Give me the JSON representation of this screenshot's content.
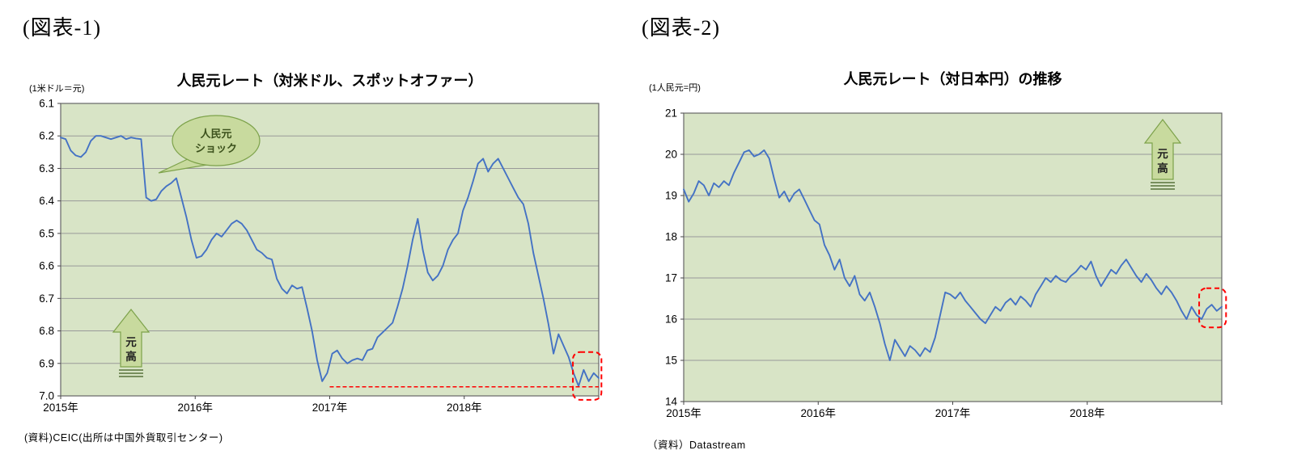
{
  "figures": {
    "fig1_label": "(図表-1)",
    "fig2_label": "(図表-2)"
  },
  "colors": {
    "line_blue": "#4472c4",
    "plot_green": "#d8e4c6",
    "annotation_green": "#c8da9e",
    "highlight_red": "#ff0000"
  },
  "chart_data": [
    {
      "type": "line",
      "title": "人民元レート（対米ドル、スポットオファー）",
      "unit_label": "(1米ドル＝元)",
      "source": "(資料)CEIC(出所は中国外貨取引センター)",
      "x_labels": [
        "2015年",
        "2016年",
        "2017年",
        "2018年"
      ],
      "x_label_positions": [
        0,
        0.25,
        0.5,
        0.75
      ],
      "x_tick_positions": [
        0,
        0.25,
        0.5,
        0.75,
        1
      ],
      "y_ticks": [
        "6.1",
        "6.2",
        "6.3",
        "6.4",
        "6.5",
        "6.6",
        "6.7",
        "6.8",
        "6.9",
        "7.0"
      ],
      "y_min": 6.1,
      "y_max": 7.0,
      "y_inverted": true,
      "grid": true,
      "line_color": "#4472c4",
      "plot_bg": "#d8e4c6",
      "grid_color": "#999999",
      "frame_color": "#666666",
      "series": [
        {
          "name": "人民元レート(対米ドル)",
          "values": [
            6.205,
            6.21,
            6.245,
            6.26,
            6.265,
            6.25,
            6.215,
            6.2,
            6.2,
            6.205,
            6.21,
            6.205,
            6.2,
            6.21,
            6.205,
            6.208,
            6.21,
            6.39,
            6.4,
            6.395,
            6.37,
            6.355,
            6.345,
            6.33,
            6.39,
            6.45,
            6.52,
            6.575,
            6.57,
            6.55,
            6.52,
            6.5,
            6.51,
            6.49,
            6.47,
            6.46,
            6.47,
            6.49,
            6.52,
            6.55,
            6.56,
            6.575,
            6.58,
            6.64,
            6.67,
            6.685,
            6.66,
            6.67,
            6.665,
            6.73,
            6.8,
            6.89,
            6.955,
            6.93,
            6.87,
            6.86,
            6.885,
            6.9,
            6.89,
            6.885,
            6.89,
            6.86,
            6.855,
            6.82,
            6.805,
            6.79,
            6.775,
            6.725,
            6.67,
            6.6,
            6.52,
            6.455,
            6.55,
            6.62,
            6.645,
            6.63,
            6.6,
            6.55,
            6.52,
            6.5,
            6.43,
            6.39,
            6.34,
            6.285,
            6.27,
            6.31,
            6.285,
            6.27,
            6.3,
            6.33,
            6.36,
            6.39,
            6.41,
            6.47,
            6.56,
            6.63,
            6.7,
            6.78,
            6.87,
            6.81,
            6.845,
            6.88,
            6.93,
            6.97,
            6.92,
            6.955,
            6.93,
            6.945
          ]
        }
      ],
      "ref_line": {
        "value": 6.972,
        "x_start": 0.5,
        "x_end": 1.0,
        "color": "#ff0000"
      },
      "highlight_box": {
        "x_start": 0.952,
        "x_end": 1.005,
        "y_top": 6.865,
        "y_bottom": 7.012,
        "color": "#ff0000"
      },
      "annotations": {
        "callout_line1": "人民元",
        "callout_line2": "ショック",
        "arrow_char1": "元",
        "arrow_char2": "高"
      }
    },
    {
      "type": "line",
      "title": "人民元レート（対日本円）の推移",
      "unit_label": "(1人民元=円)",
      "source": "（資料）Datastream",
      "x_labels": [
        "2015年",
        "2016年",
        "2017年",
        "2018年"
      ],
      "x_label_positions": [
        0,
        0.25,
        0.5,
        0.75
      ],
      "x_tick_positions": [
        0,
        0.25,
        0.5,
        0.75,
        1
      ],
      "y_ticks": [
        "21",
        "20",
        "19",
        "18",
        "17",
        "16",
        "15",
        "14"
      ],
      "y_min": 14,
      "y_max": 21,
      "y_inverted": false,
      "grid": true,
      "line_color": "#4472c4",
      "plot_bg": "#d8e4c6",
      "grid_color": "#999999",
      "frame_color": "#666666",
      "series": [
        {
          "name": "人民元レート(対日本円)",
          "values": [
            19.15,
            18.85,
            19.05,
            19.35,
            19.25,
            19.0,
            19.3,
            19.2,
            19.35,
            19.25,
            19.55,
            19.8,
            20.05,
            20.1,
            19.95,
            20.0,
            20.1,
            19.9,
            19.4,
            18.95,
            19.1,
            18.85,
            19.05,
            19.15,
            18.9,
            18.65,
            18.4,
            18.3,
            17.8,
            17.55,
            17.2,
            17.45,
            17.0,
            16.8,
            17.05,
            16.6,
            16.45,
            16.65,
            16.3,
            15.9,
            15.4,
            15.0,
            15.5,
            15.3,
            15.1,
            15.35,
            15.25,
            15.1,
            15.3,
            15.2,
            15.55,
            16.1,
            16.65,
            16.6,
            16.5,
            16.65,
            16.45,
            16.3,
            16.15,
            16.0,
            15.9,
            16.1,
            16.3,
            16.2,
            16.4,
            16.5,
            16.35,
            16.55,
            16.45,
            16.3,
            16.6,
            16.8,
            17.0,
            16.9,
            17.05,
            16.95,
            16.9,
            17.05,
            17.15,
            17.3,
            17.2,
            17.4,
            17.05,
            16.8,
            17.0,
            17.2,
            17.1,
            17.3,
            17.45,
            17.25,
            17.05,
            16.9,
            17.1,
            16.95,
            16.75,
            16.6,
            16.8,
            16.65,
            16.45,
            16.2,
            16.0,
            16.3,
            16.1,
            16.0,
            16.25,
            16.35,
            16.2,
            16.3
          ]
        }
      ],
      "highlight_box": {
        "x_start": 0.958,
        "x_end": 1.008,
        "y_top": 16.75,
        "y_bottom": 15.8,
        "color": "#ff0000"
      },
      "annotations": {
        "arrow_char1": "元",
        "arrow_char2": "高"
      }
    }
  ]
}
